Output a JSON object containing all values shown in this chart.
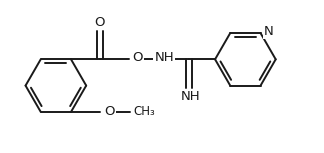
{
  "background_color": "#ffffff",
  "line_color": "#1a1a1a",
  "line_width": 1.4,
  "font_size": 8.5,
  "fig_width": 3.24,
  "fig_height": 1.53,
  "dpi": 100,
  "xlim": [
    -1.5,
    8.5
  ],
  "ylim": [
    -2.2,
    2.8
  ]
}
